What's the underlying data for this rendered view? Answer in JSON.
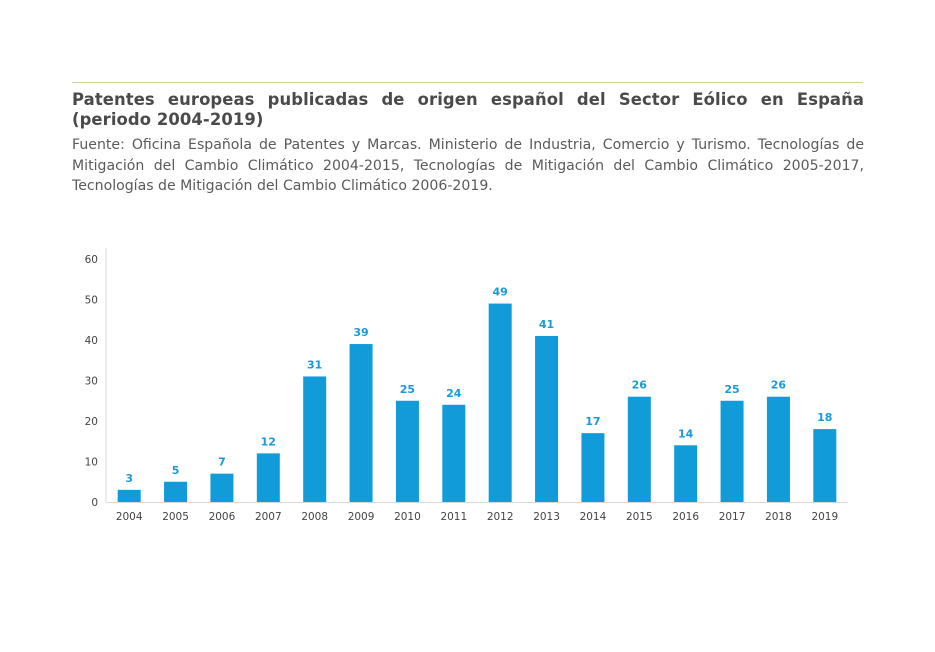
{
  "header": {
    "title": "Patentes europeas publicadas de origen español del Sector Eólico en España (periodo 2004-2019)",
    "source": "Fuente: Oficina Española de Patentes y Marcas. Ministerio de Industria, Comercio y Turismo. Tecnologías de Mitigación del Cambio Climático 2004-2015, Tecnologías de Mitigación del Cambio Climático 2005-2017, Tecnologías de Mitigación del Cambio Climático 2006-2019."
  },
  "colors": {
    "bar": "#129bd9",
    "label": "#1a9ad9",
    "rule": "#c9d98f",
    "axis": "#d9d9d9"
  },
  "chart_data": {
    "type": "bar",
    "title": "Patentes europeas publicadas de origen español del Sector Eólico en España (periodo 2004-2019)",
    "xlabel": "",
    "ylabel": "",
    "categories": [
      "2004",
      "2005",
      "2006",
      "2007",
      "2008",
      "2009",
      "2010",
      "2011",
      "2012",
      "2013",
      "2014",
      "2015",
      "2016",
      "2017",
      "2018",
      "2019"
    ],
    "values": [
      3,
      5,
      7,
      12,
      31,
      39,
      25,
      24,
      49,
      41,
      17,
      26,
      14,
      25,
      26,
      18
    ],
    "ylim": [
      0,
      60
    ],
    "yticks": [
      "0",
      "10",
      "20",
      "30",
      "40",
      "50",
      "60"
    ],
    "grid": false,
    "legend": "none"
  }
}
